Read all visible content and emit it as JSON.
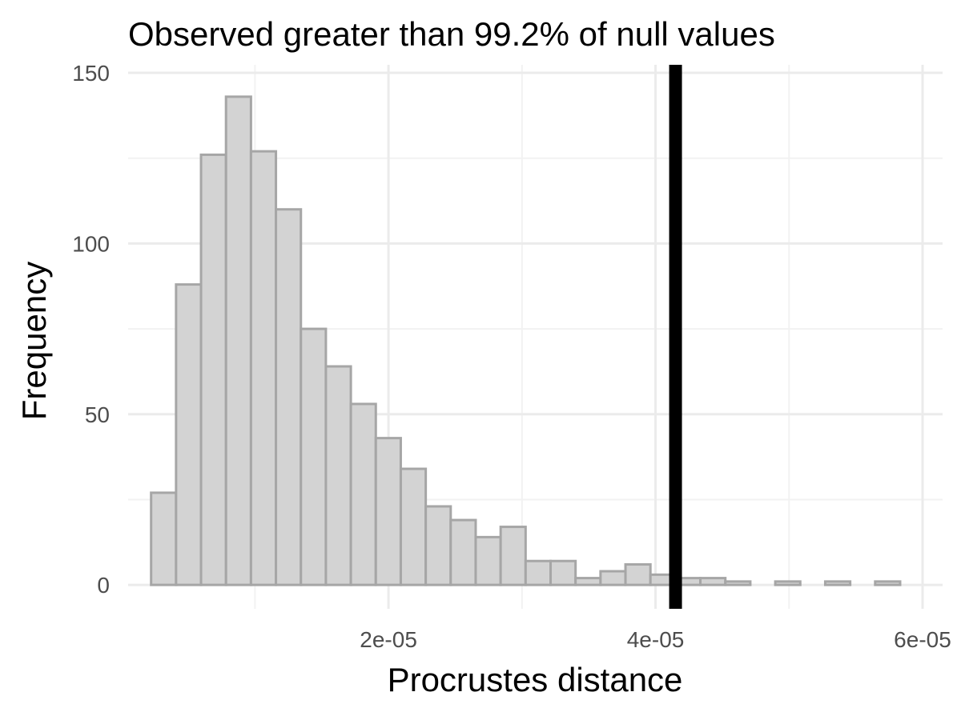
{
  "chart_data": {
    "type": "bar",
    "subtype": "histogram",
    "title": "Observed greater than 99.2% of null values",
    "xlabel": "Procrustes distance",
    "ylabel": "Frequency",
    "xlim": [
      5e-07,
      6.15e-05
    ],
    "ylim": [
      -7,
      150
    ],
    "x_ticks": [
      {
        "value": 2e-05,
        "label": "2e-05"
      },
      {
        "value": 4e-05,
        "label": "4e-05"
      },
      {
        "value": 6e-05,
        "label": "6e-05"
      }
    ],
    "y_ticks": [
      {
        "value": 0,
        "label": "0"
      },
      {
        "value": 50,
        "label": "50"
      },
      {
        "value": 100,
        "label": "100"
      },
      {
        "value": 150,
        "label": "150"
      }
    ],
    "grid": true,
    "bin_width": 1.87e-06,
    "bins": {
      "starts": [
        2.22e-06,
        4.09e-06,
        5.96e-06,
        7.83e-06,
        9.7e-06,
        1.157e-05,
        1.344e-05,
        1.531e-05,
        1.718e-05,
        1.905e-05,
        2.092e-05,
        2.279e-05,
        2.466e-05,
        2.653e-05,
        2.84e-05,
        3.027e-05,
        3.214e-05,
        3.401e-05,
        3.588e-05,
        3.775e-05,
        3.962e-05,
        4.149e-05,
        4.336e-05,
        4.523e-05,
        4.71e-05,
        4.897e-05,
        5.084e-05,
        5.271e-05,
        5.458e-05,
        5.645e-05
      ],
      "counts": [
        27,
        88,
        126,
        143,
        127,
        110,
        75,
        64,
        53,
        43,
        34,
        23,
        19,
        14,
        17,
        7,
        7,
        2,
        4,
        6,
        3,
        2,
        2,
        1,
        0,
        1,
        0,
        1,
        0,
        1
      ]
    },
    "observed_value": 4.15e-05,
    "colors": {
      "bar_fill": "#d3d3d3",
      "bar_outline": "#a6a6a6",
      "observed_line": "#000000",
      "grid": "#ebebeb"
    }
  }
}
